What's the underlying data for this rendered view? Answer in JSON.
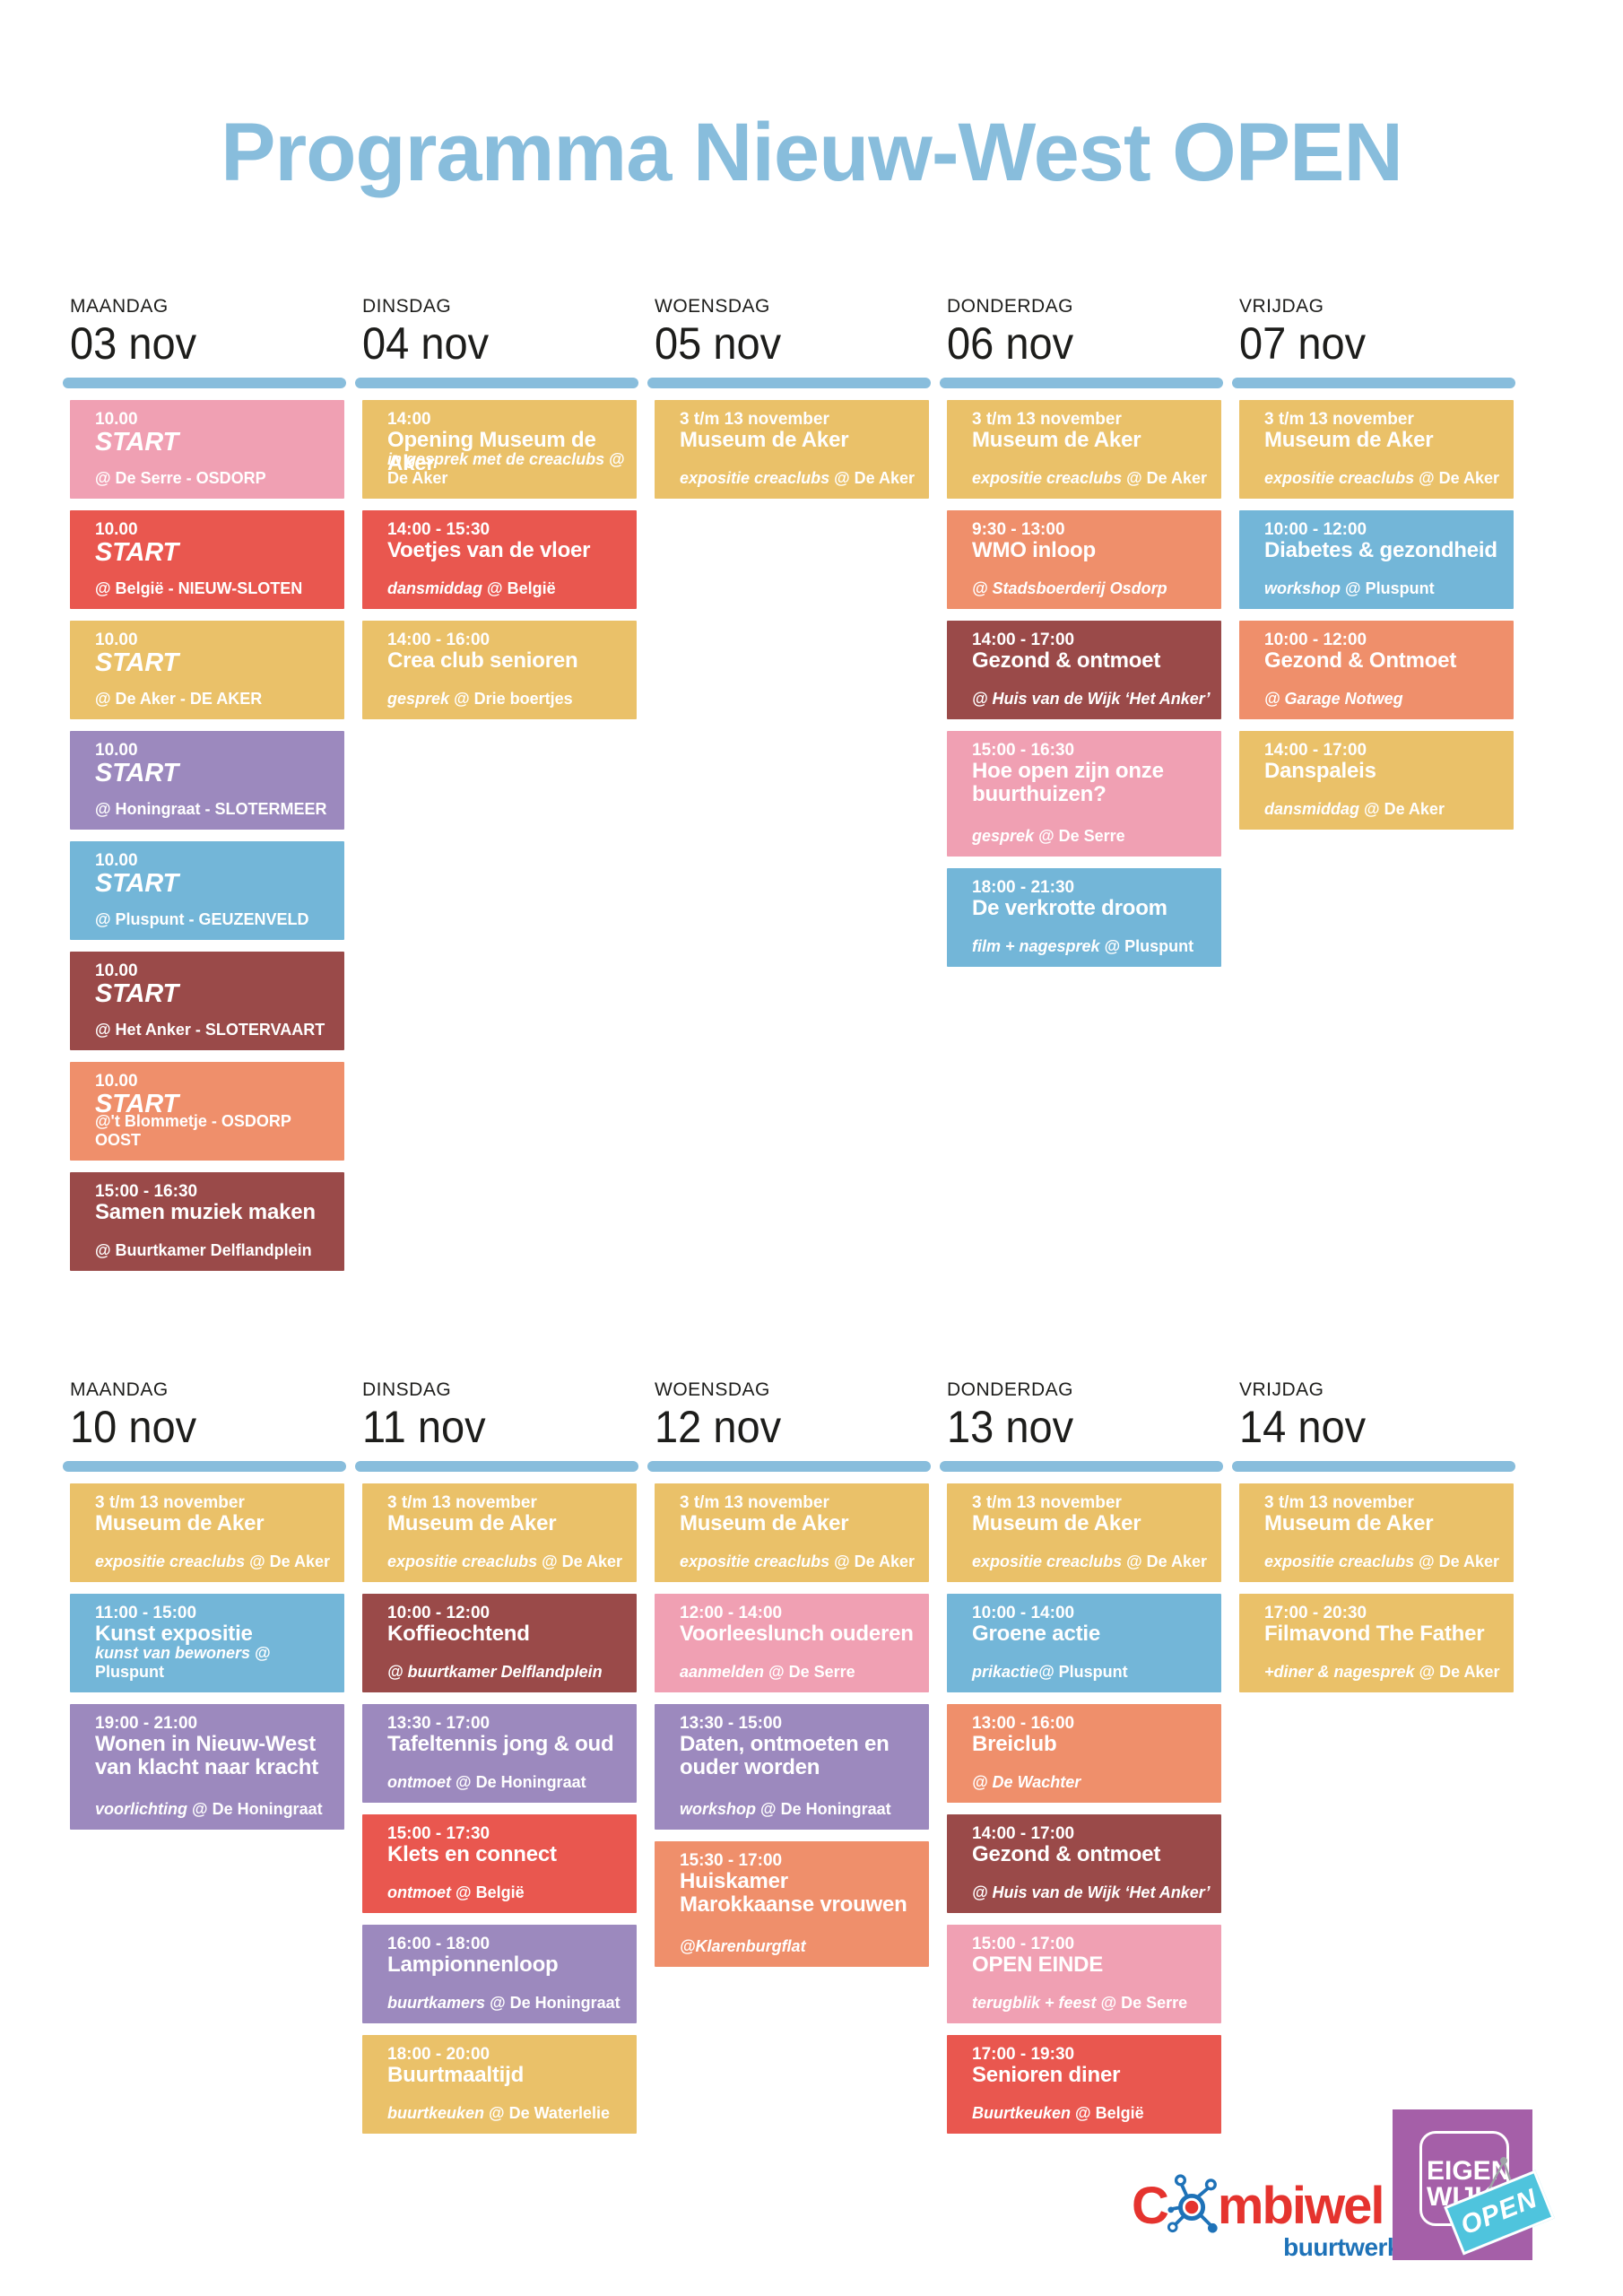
{
  "title": "Programma Nieuw-West OPEN",
  "palette": {
    "pink": "#F0A0B3",
    "red": "#E9574F",
    "yellow": "#EAC169",
    "purple": "#9C89BE",
    "blue": "#73B6D8",
    "maroon": "#9A4A49",
    "salmon": "#EF8F6B",
    "header_blue": "#88BDDC",
    "text_dark": "#1D1D1B"
  },
  "weeks": [
    {
      "days": [
        {
          "day": "MAANDAG",
          "date": "03 nov",
          "events": [
            {
              "color": "pink",
              "time": "10.00",
              "title": "START",
              "title_italic": true,
              "sub_b": "@ De Serre - OSDORP"
            },
            {
              "color": "red",
              "time": "10.00",
              "title": "START",
              "title_italic": true,
              "sub_b": "@ België - NIEUW-SLOTEN"
            },
            {
              "color": "yellow",
              "time": "10.00",
              "title": "START",
              "title_italic": true,
              "sub_b": "@ De Aker - DE AKER"
            },
            {
              "color": "purple",
              "time": "10.00",
              "title": "START",
              "title_italic": true,
              "sub_b": "@ Honingraat - SLOTERMEER"
            },
            {
              "color": "blue",
              "time": "10.00",
              "title": "START",
              "title_italic": true,
              "sub_b": "@ Pluspunt - GEUZENVELD"
            },
            {
              "color": "maroon",
              "time": "10.00",
              "title": "START",
              "title_italic": true,
              "sub_b": "@ Het Anker - SLOTERVAART"
            },
            {
              "color": "salmon",
              "time": "10.00",
              "title": "START",
              "title_italic": true,
              "sub_b": "@'t Blommetje - OSDORP OOST"
            },
            {
              "color": "maroon",
              "time": "15:00 - 16:30",
              "title": "Samen muziek maken",
              "sub_b": "@ Buurtkamer Delflandplein"
            }
          ]
        },
        {
          "day": "DINSDAG",
          "date": "04 nov",
          "events": [
            {
              "color": "yellow",
              "time": "14:00",
              "title": "Opening Museum de Aker",
              "sub_i": "in gesprek met de creaclubs",
              "sub_b": "@ De Aker"
            },
            {
              "color": "red",
              "time": "14:00 - 15:30",
              "title": "Voetjes van de vloer",
              "sub_i": "dansmiddag",
              "sub_b": "@ België"
            },
            {
              "color": "yellow",
              "time": "14:00 - 16:00",
              "title": "Crea club senioren",
              "sub_i": "gesprek",
              "sub_b": "@ Drie boertjes"
            }
          ]
        },
        {
          "day": "WOENSDAG",
          "date": "05 nov",
          "events": [
            {
              "color": "yellow",
              "time": "3 t/m 13 november",
              "title": "Museum de Aker",
              "sub_i": "expositie creaclubs",
              "sub_b": "@ De Aker"
            }
          ]
        },
        {
          "day": "DONDERDAG",
          "date": "06 nov",
          "events": [
            {
              "color": "yellow",
              "time": "3 t/m 13 november",
              "title": "Museum de Aker",
              "sub_i": "expositie creaclubs",
              "sub_b": "@ De Aker"
            },
            {
              "color": "salmon",
              "time": "9:30 - 13:00",
              "title": "WMO inloop",
              "sub_i": "@ Stadsboerderij Osdorp"
            },
            {
              "color": "maroon",
              "time": "14:00 - 17:00",
              "title": "Gezond & ontmoet",
              "sub_i": "@ Huis van de Wijk ‘Het Anker’"
            },
            {
              "color": "pink",
              "tall": true,
              "time": "15:00 - 16:30",
              "title": "Hoe open zijn onze buurthuizen?",
              "sub_i": "gesprek",
              "sub_b": "@ De Serre"
            },
            {
              "color": "blue",
              "time": "18:00 - 21:30",
              "title": "De verkrotte droom",
              "sub_i": "film + nagesprek",
              "sub_b": "@ Pluspunt"
            }
          ]
        },
        {
          "day": "VRIJDAG",
          "date": "07 nov",
          "events": [
            {
              "color": "yellow",
              "time": "3 t/m 13 november",
              "title": "Museum de Aker",
              "sub_i": "expositie creaclubs",
              "sub_b": "@ De Aker"
            },
            {
              "color": "blue",
              "time": "10:00 - 12:00",
              "title": "Diabetes & gezondheid",
              "sub_i": "workshop",
              "sub_b": "@ Pluspunt"
            },
            {
              "color": "salmon",
              "time": "10:00 - 12:00",
              "title": "Gezond & Ontmoet",
              "sub_i": "@ Garage Notweg"
            },
            {
              "color": "yellow",
              "time": "14:00 - 17:00",
              "title": "Danspaleis",
              "sub_i": "dansmiddag",
              "sub_b": "@ De Aker"
            }
          ]
        }
      ]
    },
    {
      "days": [
        {
          "day": "MAANDAG",
          "date": "10 nov",
          "events": [
            {
              "color": "yellow",
              "time": "3 t/m 13 november",
              "title": "Museum de Aker",
              "sub_i": "expositie creaclubs",
              "sub_b": "@ De Aker"
            },
            {
              "color": "blue",
              "time": "11:00 - 15:00",
              "title": "Kunst expositie",
              "sub_i": "kunst van bewoners",
              "sub_b": "@ Pluspunt"
            },
            {
              "color": "purple",
              "tall": true,
              "time": "19:00 - 21:00",
              "title": "Wonen in Nieuw-West van klacht naar kracht",
              "sub_i": "voorlichting",
              "sub_b": "@ De Honingraat"
            }
          ]
        },
        {
          "day": "DINSDAG",
          "date": "11 nov",
          "events": [
            {
              "color": "yellow",
              "time": "3 t/m 13 november",
              "title": "Museum de Aker",
              "sub_i": "expositie creaclubs",
              "sub_b": "@ De Aker"
            },
            {
              "color": "maroon",
              "time": "10:00 - 12:00",
              "title": "Koffieochtend",
              "sub_i": "@ buurtkamer Delflandplein"
            },
            {
              "color": "purple",
              "time": "13:30 - 17:00",
              "title": "Tafeltennis jong & oud",
              "sub_i": "ontmoet",
              "sub_b": "@ De Honingraat"
            },
            {
              "color": "red",
              "time": "15:00 - 17:30",
              "title": "Klets en connect",
              "sub_i": "ontmoet",
              "sub_b": "@ België"
            },
            {
              "color": "purple",
              "time": "16:00 - 18:00",
              "title": "Lampionnenloop",
              "sub_i": "buurtkamers",
              "sub_b": "@ De Honingraat"
            },
            {
              "color": "yellow",
              "time": "18:00 - 20:00",
              "title": "Buurtmaaltijd",
              "sub_i": "buurtkeuken",
              "sub_b": "@ De Waterlelie"
            }
          ]
        },
        {
          "day": "WOENSDAG",
          "date": "12 nov",
          "events": [
            {
              "color": "yellow",
              "time": "3 t/m 13 november",
              "title": "Museum de Aker",
              "sub_i": "expositie creaclubs",
              "sub_b": "@ De Aker"
            },
            {
              "color": "pink",
              "time": "12:00 - 14:00",
              "title": "Voorleeslunch ouderen",
              "sub_i": "aanmelden",
              "sub_b": "@ De Serre"
            },
            {
              "color": "purple",
              "tall": true,
              "time": "13:30 - 15:00",
              "title": "Daten, ontmoeten en ouder worden",
              "sub_i": "workshop",
              "sub_b": "@ De Honingraat"
            },
            {
              "color": "salmon",
              "tall": true,
              "time": "15:30 - 17:00",
              "title": "Huiskamer Marokkaanse vrouwen",
              "sub_i": "@Klarenburgflat"
            }
          ]
        },
        {
          "day": "DONDERDAG",
          "date": "13 nov",
          "events": [
            {
              "color": "yellow",
              "time": "3 t/m 13 november",
              "title": "Museum de Aker",
              "sub_i": "expositie creaclubs",
              "sub_b": "@ De Aker"
            },
            {
              "color": "blue",
              "time": "10:00 - 14:00",
              "title": "Groene actie",
              "sub_i": "prikactie@",
              "sub_b": "Pluspunt"
            },
            {
              "color": "salmon",
              "time": "13:00 - 16:00",
              "title": "Breiclub",
              "sub_i": "@ De Wachter"
            },
            {
              "color": "maroon",
              "time": "14:00 - 17:00",
              "title": "Gezond & ontmoet",
              "sub_i": "@ Huis van de Wijk ‘Het Anker’"
            },
            {
              "color": "pink",
              "time": "15:00 - 17:00",
              "title": "OPEN EINDE",
              "sub_i": "terugblik + feest",
              "sub_b": "@ De Serre"
            },
            {
              "color": "red",
              "time": "17:00 - 19:30",
              "title": "Senioren diner",
              "sub_i": "Buurtkeuken",
              "sub_b": "@ België"
            }
          ]
        },
        {
          "day": "VRIJDAG",
          "date": "14 nov",
          "events": [
            {
              "color": "yellow",
              "time": "3 t/m 13 november",
              "title": "Museum de Aker",
              "sub_i": "expositie creaclubs",
              "sub_b": "@ De Aker"
            },
            {
              "color": "yellow",
              "time": "17:00 - 20:30",
              "title": "Filmavond The Father",
              "sub_i": "+diner & nagesprek",
              "sub_b": "@ De Aker"
            }
          ]
        }
      ]
    }
  ],
  "footer": {
    "combiwel": {
      "word_start": "C",
      "word_end": "mbiwel",
      "tagline": "buurtwerk",
      "red": "#E5332E",
      "blue": "#1E72B8"
    },
    "eigenwijks": {
      "line1": "EIGEN",
      "line2": "WIJKS",
      "tag": "OPEN",
      "purple": "#A55FA8",
      "cyan": "#4FC4DD"
    }
  }
}
